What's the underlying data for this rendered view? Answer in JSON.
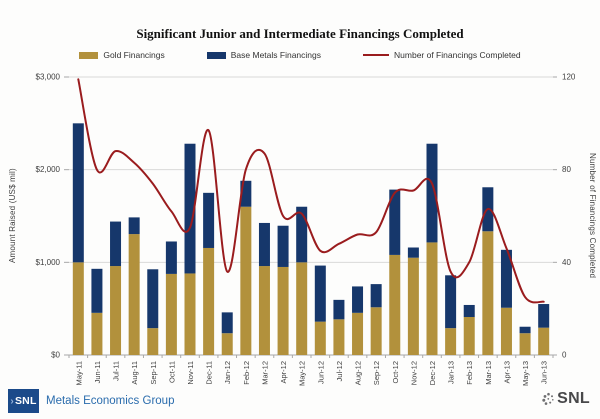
{
  "title": "Significant Junior and Intermediate Financings Completed",
  "legend": [
    {
      "label": "Gold Financings",
      "color": "#b2913c",
      "swatch": "rect"
    },
    {
      "label": "Base Metals Financings",
      "color": "#16376b",
      "swatch": "rect"
    },
    {
      "label": "Number of Financings Completed",
      "color": "#9a1c1e",
      "swatch": "line"
    }
  ],
  "axes": {
    "left_title": "Amount Raised (US$ mil)",
    "right_title": "Number of Financings Completed",
    "left_tick_labels": [
      "$0",
      "$1,000",
      "$2,000",
      "$3,000"
    ],
    "left_tick_values": [
      0,
      1000,
      2000,
      3000
    ],
    "right_tick_labels": [
      "0",
      "40",
      "80",
      "120"
    ],
    "right_tick_values": [
      0,
      40,
      80,
      120
    ]
  },
  "chart_data": {
    "type": "bar",
    "subtype": "stacked-bars-with-secondary-axis-line",
    "title": "Significant Junior and Intermediate Financings Completed",
    "xlabel": "",
    "ylabel_left": "Amount Raised (US$ mil)",
    "ylabel_right": "Number of Financings Completed",
    "ylim_left": [
      0,
      3000
    ],
    "ylim_right": [
      0,
      120
    ],
    "grid": "horizontal",
    "legend_position": "top",
    "categories": [
      "May-11",
      "Jun-11",
      "Jul-11",
      "Aug-11",
      "Sep-11",
      "Oct-11",
      "Nov-11",
      "Dec-11",
      "Jan-12",
      "Feb-12",
      "Mar-12",
      "Apr-12",
      "May-12",
      "Jun-12",
      "Jul-12",
      "Aug-12",
      "Sep-12",
      "Oct-12",
      "Nov-12",
      "Dec-12",
      "Jan-13",
      "Feb-13",
      "Mar-13",
      "Apr-13",
      "May-13",
      "Jun-13"
    ],
    "series": [
      {
        "name": "Gold Financings",
        "type": "bar-stacked",
        "axis": "left",
        "color": "#b2913c",
        "values": [
          1000,
          455,
          960,
          1305,
          290,
          875,
          880,
          1155,
          235,
          1600,
          960,
          950,
          1000,
          360,
          385,
          455,
          515,
          1080,
          1050,
          1215,
          290,
          410,
          1335,
          510,
          235,
          295
        ]
      },
      {
        "name": "Base Metals Financings",
        "type": "bar-stacked",
        "axis": "left",
        "color": "#16376b",
        "values": [
          1500,
          475,
          480,
          180,
          635,
          350,
          1400,
          595,
          225,
          280,
          465,
          445,
          600,
          605,
          210,
          285,
          250,
          705,
          110,
          1065,
          570,
          130,
          475,
          625,
          70,
          255
        ]
      },
      {
        "name": "Number of Financings Completed",
        "type": "line-smooth",
        "axis": "right",
        "color": "#9a1c1e",
        "values": [
          119,
          80,
          88,
          83,
          74,
          62,
          55,
          97,
          36,
          80,
          87,
          60,
          61,
          45,
          48,
          52,
          53,
          70,
          71,
          74,
          36,
          40,
          63,
          46,
          25,
          23
        ]
      }
    ]
  },
  "colors": {
    "gold": "#b2913c",
    "navy": "#16376b",
    "line_red": "#9a1c1e",
    "gridline": "#d9d9d9",
    "axis_line": "#a8a8a8",
    "tick_text": "#3f3f3f",
    "footer_logo_bg": "#1b4a8a",
    "footer_text_blue": "#2a6cad",
    "footer_snl_gray": "#48484a"
  },
  "footer": {
    "logo_chevron": "›",
    "logo_box_text": "SNL",
    "left_text": "Metals Economics Group",
    "right_text": "SNL"
  }
}
